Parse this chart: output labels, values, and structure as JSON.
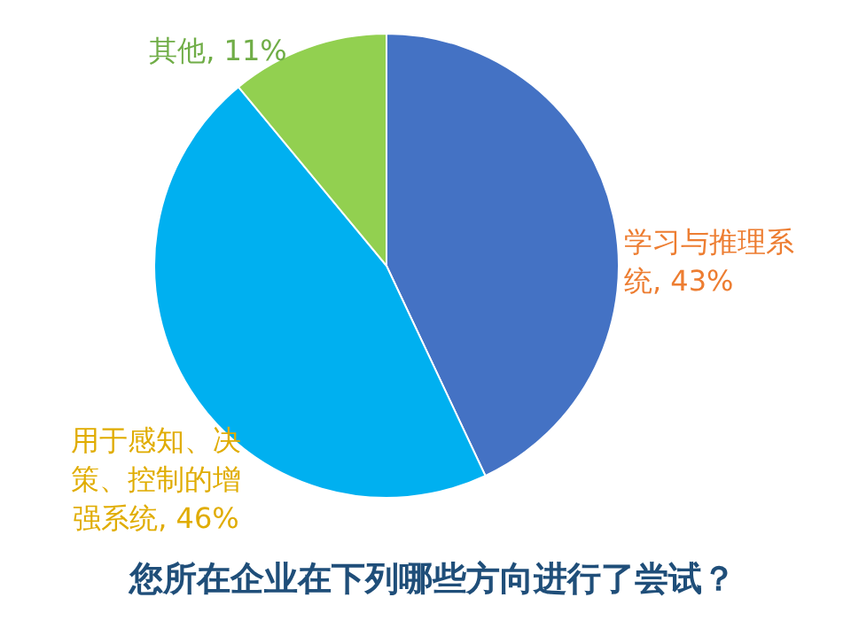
{
  "chart_data": {
    "type": "pie",
    "title": "您所在企业在下列哪些方向进行了尝试？",
    "categories": [
      "学习与推理系统",
      "用于感知、决策、控制的增强系统",
      "其他"
    ],
    "values": [
      43,
      46,
      11
    ],
    "colors": [
      "#4472c4",
      "#00b0f0",
      "#92d050"
    ],
    "value_labels": [
      ", 43%",
      ", 46%",
      ", 11%"
    ],
    "legend": false
  }
}
